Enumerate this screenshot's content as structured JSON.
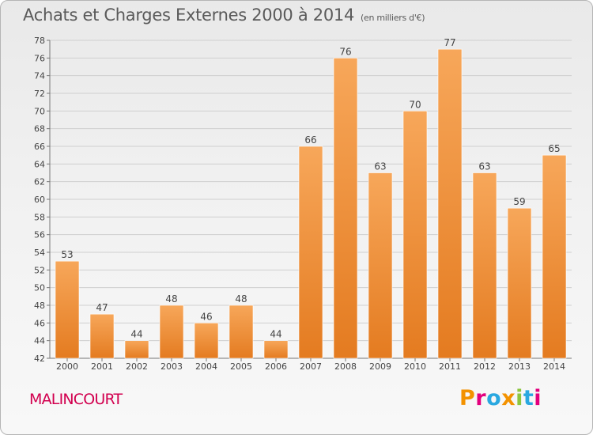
{
  "header": {
    "title": "Achats et Charges Externes 2000 à 2014",
    "subtitle": "(en milliers d'€)"
  },
  "footer": {
    "town": "MALINCOURT",
    "brand": "Proxiti",
    "brand_colors": [
      "#f39200",
      "#e3007e",
      "#2aa8e0",
      "#f39200",
      "#8cc63f",
      "#2aa8e0",
      "#e3007e"
    ]
  },
  "colors": {
    "bar_top": "#f7a75a",
    "bar_bottom": "#e47b20",
    "grid": "#cfcfcf"
  },
  "chart_data": {
    "type": "bar",
    "categories": [
      "2000",
      "2001",
      "2002",
      "2003",
      "2004",
      "2005",
      "2006",
      "2007",
      "2008",
      "2009",
      "2010",
      "2011",
      "2012",
      "2013",
      "2014"
    ],
    "values": [
      53,
      47,
      44,
      48,
      46,
      48,
      44,
      66,
      76,
      63,
      70,
      77,
      63,
      59,
      65
    ],
    "title": "Achats et Charges Externes 2000 à 2014",
    "subtitle": "(en milliers d'€)",
    "xlabel": "",
    "ylabel": "",
    "ylim": [
      42,
      78
    ],
    "yticks": [
      42,
      44,
      46,
      48,
      50,
      52,
      54,
      56,
      58,
      60,
      62,
      64,
      66,
      68,
      70,
      72,
      74,
      76,
      78
    ],
    "grid": true,
    "data_labels": true
  }
}
